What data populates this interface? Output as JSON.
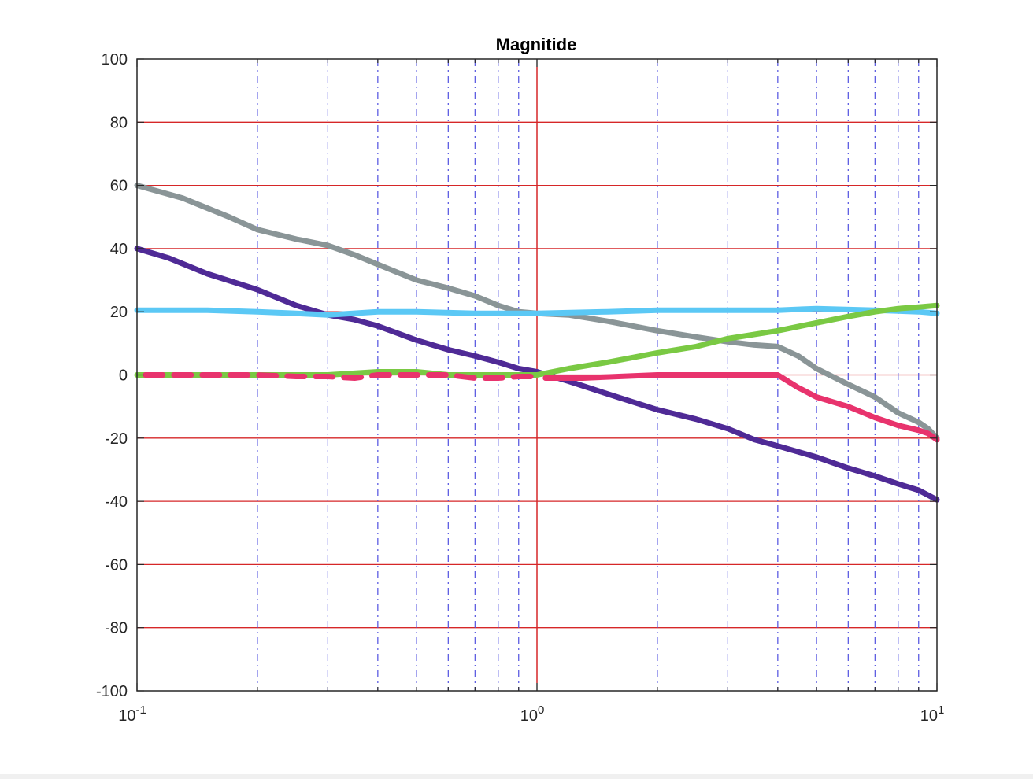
{
  "chart_data": {
    "type": "line",
    "title": "Magnitide",
    "xlabel": "",
    "ylabel": "",
    "xscale": "log",
    "xlim": [
      0.1,
      10
    ],
    "ylim": [
      -100,
      100
    ],
    "yticks": [
      -100,
      -80,
      -60,
      -40,
      -20,
      0,
      20,
      40,
      60,
      80,
      100
    ],
    "ytick_labels": [
      "-100",
      "-80",
      "-60",
      "-40",
      "-20",
      "0",
      "20",
      "40",
      "60",
      "80",
      "100"
    ],
    "xticks": [
      {
        "value": 0.1,
        "base": "10",
        "exp": "-1"
      },
      {
        "value": 1,
        "base": "10",
        "exp": "0"
      },
      {
        "value": 10,
        "base": "10",
        "exp": "1"
      }
    ],
    "grid": {
      "horizontal": "on",
      "horizontal_color": "#d62728",
      "vertical_minor": "on",
      "vertical_minor_color": "#5050e0",
      "vertical_minor_style": "dash-dot",
      "vertical_major_color": "#d62728",
      "vertical_major_at": 1
    },
    "series": [
      {
        "color": "#8a9597",
        "style": "solid",
        "x": [
          0.1,
          0.13,
          0.17,
          0.2,
          0.25,
          0.3,
          0.35,
          0.4,
          0.5,
          0.6,
          0.7,
          0.8,
          0.9,
          1.0,
          1.2,
          1.5,
          2.0,
          2.5,
          3.0,
          3.5,
          4.0,
          4.5,
          5.0,
          6.0,
          7.0,
          8.0,
          9.0,
          9.5,
          10
        ],
        "y": [
          60,
          56,
          50,
          46,
          43,
          41,
          38,
          35,
          30,
          27.5,
          25,
          22,
          20,
          19.5,
          19,
          17,
          14,
          12,
          10.5,
          9.5,
          9,
          6,
          2,
          -3,
          -7,
          -12,
          -15,
          -17,
          -20
        ]
      },
      {
        "color": "#4f2a96",
        "style": "solid",
        "x": [
          0.1,
          0.12,
          0.15,
          0.2,
          0.25,
          0.3,
          0.35,
          0.4,
          0.5,
          0.6,
          0.7,
          0.8,
          0.9,
          1.0,
          1.2,
          1.5,
          2.0,
          2.5,
          3.0,
          3.5,
          4.0,
          5.0,
          6.0,
          7.0,
          8.0,
          9.0,
          10
        ],
        "y": [
          40,
          37,
          32,
          27,
          22,
          19,
          17.5,
          15.5,
          11,
          8,
          6,
          4,
          2,
          1,
          -2,
          -6,
          -11,
          -14,
          -17,
          -20.5,
          -22.5,
          -26,
          -29.5,
          -32,
          -34.5,
          -36.5,
          -39.5
        ]
      },
      {
        "color": "#5bc8f5",
        "style": "solid",
        "x": [
          0.1,
          0.15,
          0.2,
          0.25,
          0.3,
          0.4,
          0.5,
          0.7,
          1.0,
          1.5,
          2.0,
          3.0,
          4.0,
          5.0,
          7.0,
          9.0,
          10
        ],
        "y": [
          20.5,
          20.5,
          20,
          19.5,
          19,
          20,
          20,
          19.5,
          19.5,
          20,
          20.5,
          20.5,
          20.5,
          21,
          20.5,
          20,
          19.5
        ]
      },
      {
        "color": "#7ac943",
        "style": "solid",
        "x": [
          0.1,
          0.2,
          0.3,
          0.4,
          0.5,
          0.6,
          0.8,
          1.0,
          1.2,
          1.5,
          2.0,
          2.5,
          3.0,
          4.0,
          5.0,
          6.0,
          7.0,
          8.0,
          9.0,
          10
        ],
        "y": [
          0,
          0,
          0,
          1,
          1,
          0,
          0,
          0,
          2,
          4,
          7,
          9,
          11.5,
          14,
          16.5,
          18.5,
          20,
          21,
          21.5,
          22
        ]
      },
      {
        "color": "#e8336d",
        "style": "dashed",
        "x": [
          0.105,
          0.15,
          0.2,
          0.25,
          0.3,
          0.35,
          0.4,
          0.5,
          0.6,
          0.7,
          0.8,
          0.9,
          1.0
        ],
        "y": [
          0,
          0,
          0,
          -0.5,
          -0.5,
          -1,
          0,
          0,
          0,
          -1,
          -1,
          -0.5,
          -0.5
        ]
      },
      {
        "color": "#e8336d",
        "style": "solid",
        "x": [
          1.05,
          1.3,
          1.6,
          2.0,
          2.5,
          3.0,
          3.5,
          4.0,
          4.5,
          5.0,
          6.0,
          7.0,
          8.0,
          9.0,
          9.5,
          10
        ],
        "y": [
          -1,
          -1,
          -0.5,
          0,
          0,
          0,
          0,
          0,
          -4,
          -7,
          -10,
          -13.5,
          -16,
          -17.5,
          -18.5,
          -20.5
        ]
      }
    ]
  }
}
